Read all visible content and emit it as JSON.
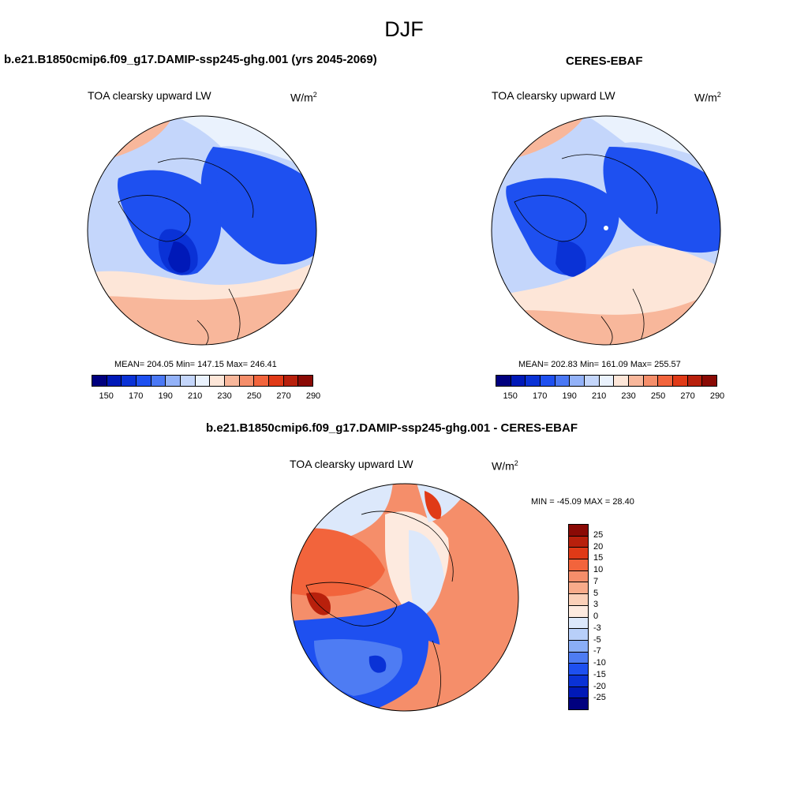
{
  "season": "DJF",
  "panels": [
    {
      "title": "b.e21.B1850cmip6.f09_g17.DAMIP-ssp245-ghg.001 (yrs 2045-2069)",
      "variable": "TOA clearsky upward LW",
      "units": "W/m",
      "units_exp": "2",
      "stats": "MEAN= 204.05  Min= 147.15  Max= 246.41"
    },
    {
      "title": "CERES-EBAF",
      "variable": "TOA clearsky upward LW",
      "units": "W/m",
      "units_exp": "2",
      "stats": "MEAN= 202.83  Min= 161.09  Max= 255.57"
    }
  ],
  "diff": {
    "title": "b.e21.B1850cmip6.f09_g17.DAMIP-ssp245-ghg.001 - CERES-EBAF",
    "variable": "TOA clearsky upward LW",
    "units": "W/m",
    "units_exp": "2",
    "minmax": "MIN = -45.09 MAX =  28.40"
  },
  "abs_colorbar": {
    "colors": [
      "#00007f",
      "#0019b8",
      "#0a32d6",
      "#1e50f0",
      "#4a78f5",
      "#93b2f8",
      "#c4d6fb",
      "#eaf2fd",
      "#fde6d8",
      "#f8b79b",
      "#f58e6a",
      "#f2643c",
      "#e03a17",
      "#b8200c",
      "#8a0a05"
    ],
    "labels": [
      "150",
      "170",
      "190",
      "210",
      "230",
      "250",
      "270",
      "290"
    ]
  },
  "diff_colorbar": {
    "colors": [
      "#8a0a05",
      "#b8200c",
      "#e03a17",
      "#f2643c",
      "#f58e6a",
      "#f8ab8a",
      "#fbd0b8",
      "#fdeadf",
      "#dce8fb",
      "#b8cff9",
      "#8aaef6",
      "#4e7cf3",
      "#1e50f0",
      "#0a32d6",
      "#0019b8",
      "#00007f"
    ],
    "labels": [
      "25",
      "20",
      "15",
      "10",
      "7",
      "5",
      "3",
      "0",
      "-3",
      "-5",
      "-7",
      "-10",
      "-15",
      "-20",
      "-25"
    ]
  }
}
